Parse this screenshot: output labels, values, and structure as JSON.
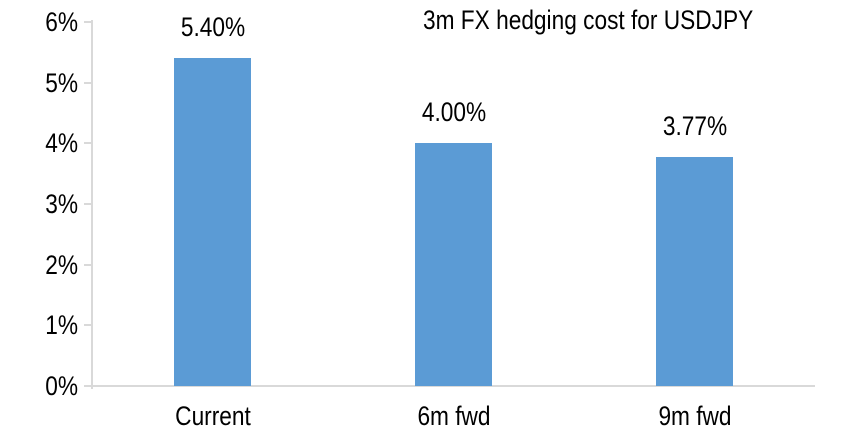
{
  "chart_data": {
    "type": "bar",
    "title": "3m FX hedging cost for USDJPY",
    "categories": [
      "Current",
      "6m fwd",
      "9m fwd"
    ],
    "values": [
      5.4,
      4.0,
      3.77
    ],
    "value_labels": [
      "5.40%",
      "4.00%",
      "3.77%"
    ],
    "y_ticks": [
      "0%",
      "1%",
      "2%",
      "3%",
      "4%",
      "5%",
      "6%"
    ],
    "ylim": [
      0,
      6
    ],
    "xlabel": "",
    "ylabel": "",
    "grid": false,
    "legend": false,
    "bar_color": "#5b9bd5",
    "axis_color": "#d9d9d9",
    "text_color": "#000000",
    "background_color": "#ffffff"
  }
}
